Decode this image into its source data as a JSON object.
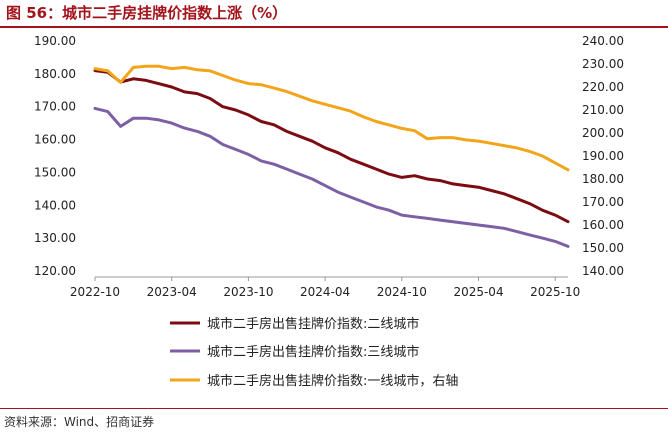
{
  "title": "图 56：城市二手房挂牌价指数上涨（%）",
  "source": "资料来源：Wind、招商证券",
  "chart_data": {
    "type": "line",
    "title": "图 56：城市二手房挂牌价指数上涨（%）",
    "x_tick_labels": [
      "2022-10",
      "2023-04",
      "2023-10",
      "2024-04",
      "2024-10",
      "2025-04",
      "2025-10"
    ],
    "x_range_months": [
      "2022-10",
      "2025-11"
    ],
    "y_left": {
      "min": 120,
      "max": 190,
      "ticks": [
        "120.00",
        "130.00",
        "140.00",
        "150.00",
        "160.00",
        "170.00",
        "180.00",
        "190.00"
      ]
    },
    "y_right": {
      "min": 140,
      "max": 240,
      "ticks": [
        "140.00",
        "150.00",
        "160.00",
        "170.00",
        "180.00",
        "190.00",
        "200.00",
        "210.00",
        "220.00",
        "230.00",
        "240.00"
      ]
    },
    "grid": false,
    "legend_position": "bottom",
    "series": [
      {
        "name": "城市二手房出售挂牌价指数:二线城市",
        "axis": "left",
        "color": "#7b0c12",
        "points": [
          [
            "2022-10",
            181
          ],
          [
            "2022-11",
            180.5
          ],
          [
            "2022-12",
            177.5
          ],
          [
            "2023-01",
            178.5
          ],
          [
            "2023-02",
            178
          ],
          [
            "2023-03",
            177
          ],
          [
            "2023-04",
            176
          ],
          [
            "2023-05",
            174.5
          ],
          [
            "2023-06",
            174
          ],
          [
            "2023-07",
            172.5
          ],
          [
            "2023-08",
            170
          ],
          [
            "2023-09",
            169
          ],
          [
            "2023-10",
            167.5
          ],
          [
            "2023-11",
            165.5
          ],
          [
            "2023-12",
            164.5
          ],
          [
            "2024-01",
            162.5
          ],
          [
            "2024-02",
            161
          ],
          [
            "2024-03",
            159.5
          ],
          [
            "2024-04",
            157.5
          ],
          [
            "2024-05",
            156
          ],
          [
            "2024-06",
            154
          ],
          [
            "2024-07",
            152.5
          ],
          [
            "2024-08",
            151
          ],
          [
            "2024-09",
            149.5
          ],
          [
            "2024-10",
            148.5
          ],
          [
            "2024-11",
            149
          ],
          [
            "2024-12",
            148
          ],
          [
            "2025-01",
            147.5
          ],
          [
            "2025-02",
            146.5
          ],
          [
            "2025-03",
            146
          ],
          [
            "2025-04",
            145.5
          ],
          [
            "2025-05",
            144.5
          ],
          [
            "2025-06",
            143.5
          ],
          [
            "2025-07",
            142
          ],
          [
            "2025-08",
            140.5
          ],
          [
            "2025-09",
            138.5
          ],
          [
            "2025-10",
            137
          ],
          [
            "2025-11",
            135
          ]
        ]
      },
      {
        "name": "城市二手房出售挂牌价指数:三线城市",
        "axis": "left",
        "color": "#7d5fa6",
        "points": [
          [
            "2022-10",
            169.5
          ],
          [
            "2022-11",
            168.5
          ],
          [
            "2022-12",
            164
          ],
          [
            "2023-01",
            166.5
          ],
          [
            "2023-02",
            166.5
          ],
          [
            "2023-03",
            166
          ],
          [
            "2023-04",
            165
          ],
          [
            "2023-05",
            163.5
          ],
          [
            "2023-06",
            162.5
          ],
          [
            "2023-07",
            161
          ],
          [
            "2023-08",
            158.5
          ],
          [
            "2023-09",
            157
          ],
          [
            "2023-10",
            155.5
          ],
          [
            "2023-11",
            153.5
          ],
          [
            "2023-12",
            152.5
          ],
          [
            "2024-01",
            151
          ],
          [
            "2024-02",
            149.5
          ],
          [
            "2024-03",
            148
          ],
          [
            "2024-04",
            146
          ],
          [
            "2024-05",
            144
          ],
          [
            "2024-06",
            142.5
          ],
          [
            "2024-07",
            141
          ],
          [
            "2024-08",
            139.5
          ],
          [
            "2024-09",
            138.5
          ],
          [
            "2024-10",
            137
          ],
          [
            "2024-11",
            136.5
          ],
          [
            "2024-12",
            136
          ],
          [
            "2025-01",
            135.5
          ],
          [
            "2025-02",
            135
          ],
          [
            "2025-03",
            134.5
          ],
          [
            "2025-04",
            134
          ],
          [
            "2025-05",
            133.5
          ],
          [
            "2025-06",
            133
          ],
          [
            "2025-07",
            132
          ],
          [
            "2025-08",
            131
          ],
          [
            "2025-09",
            130
          ],
          [
            "2025-10",
            129
          ],
          [
            "2025-11",
            127.5
          ]
        ]
      },
      {
        "name": "城市二手房出售挂牌价指数:一线城市，右轴",
        "axis": "right",
        "color": "#f2a51a",
        "points": [
          [
            "2022-10",
            228
          ],
          [
            "2022-11",
            227
          ],
          [
            "2022-12",
            222
          ],
          [
            "2023-01",
            228.5
          ],
          [
            "2023-02",
            229
          ],
          [
            "2023-03",
            229
          ],
          [
            "2023-04",
            228
          ],
          [
            "2023-05",
            228.5
          ],
          [
            "2023-06",
            227.5
          ],
          [
            "2023-07",
            227
          ],
          [
            "2023-08",
            225
          ],
          [
            "2023-09",
            223
          ],
          [
            "2023-10",
            221.5
          ],
          [
            "2023-11",
            221
          ],
          [
            "2023-12",
            219.5
          ],
          [
            "2024-01",
            218
          ],
          [
            "2024-02",
            216
          ],
          [
            "2024-03",
            214
          ],
          [
            "2024-04",
            212.5
          ],
          [
            "2024-05",
            211
          ],
          [
            "2024-06",
            209.5
          ],
          [
            "2024-07",
            207
          ],
          [
            "2024-08",
            205
          ],
          [
            "2024-09",
            203.5
          ],
          [
            "2024-10",
            202
          ],
          [
            "2024-11",
            201
          ],
          [
            "2024-12",
            197.5
          ],
          [
            "2025-01",
            198
          ],
          [
            "2025-02",
            198
          ],
          [
            "2025-03",
            197
          ],
          [
            "2025-04",
            196.5
          ],
          [
            "2025-05",
            195.5
          ],
          [
            "2025-06",
            194.5
          ],
          [
            "2025-07",
            193.5
          ],
          [
            "2025-08",
            192
          ],
          [
            "2025-09",
            190
          ],
          [
            "2025-10",
            187
          ],
          [
            "2025-11",
            184
          ]
        ]
      }
    ]
  }
}
